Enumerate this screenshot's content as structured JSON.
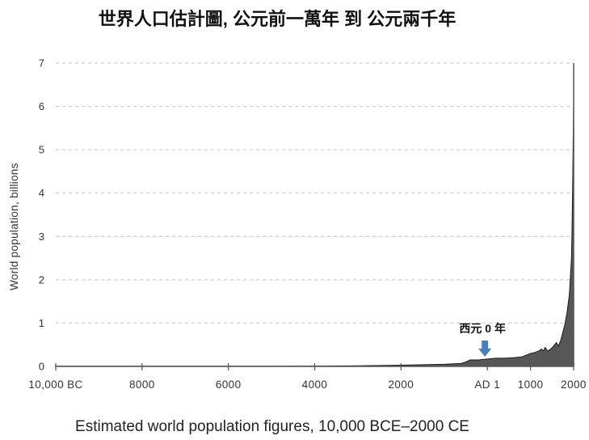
{
  "chart_data": {
    "type": "area",
    "title": "世界人口估計圖, 公元前一萬年 到 公元兩千年",
    "ylabel": "World population, billions",
    "caption": "Estimated world population figures, 10,000 BCE–2000 CE",
    "xlim": [
      -10000,
      2000
    ],
    "ylim": [
      0,
      7
    ],
    "yticks": [
      0,
      1,
      2,
      3,
      4,
      5,
      6,
      7
    ],
    "xticks": [
      {
        "value": -10000,
        "label": "10,000 BC"
      },
      {
        "value": -8000,
        "label": "8000"
      },
      {
        "value": -6000,
        "label": "6000"
      },
      {
        "value": -4000,
        "label": "4000"
      },
      {
        "value": -2000,
        "label": "2000"
      },
      {
        "value": 1,
        "label": "AD 1"
      },
      {
        "value": 1000,
        "label": "1000"
      },
      {
        "value": 2000,
        "label": "2000"
      }
    ],
    "grid": true,
    "annotation": {
      "text": "西元 0 年",
      "year": 0,
      "icon": "down-arrow-icon"
    },
    "series": [
      {
        "x": [
          -10000,
          -8000,
          -6500,
          -5000,
          -4000,
          -3000,
          -2000,
          -1000,
          -600,
          -500,
          -400,
          -200,
          0,
          200,
          400,
          600,
          800,
          1000,
          1100,
          1200,
          1250,
          1300,
          1340,
          1400,
          1500,
          1600,
          1650,
          1700,
          1750,
          1800,
          1850,
          1900,
          1950,
          1960,
          1970,
          1980,
          1990,
          2000
        ],
        "y": [
          0.004,
          0.005,
          0.005,
          0.005,
          0.007,
          0.014,
          0.027,
          0.05,
          0.07,
          0.1,
          0.15,
          0.15,
          0.17,
          0.19,
          0.19,
          0.2,
          0.22,
          0.3,
          0.32,
          0.36,
          0.4,
          0.36,
          0.44,
          0.35,
          0.43,
          0.55,
          0.47,
          0.6,
          0.79,
          0.98,
          1.26,
          1.65,
          2.5,
          3.0,
          3.7,
          4.4,
          5.3,
          6.1
        ]
      }
    ]
  },
  "colors": {
    "area_fill": "#575757",
    "area_stroke": "#1a1a1a",
    "grid": "#c2c2c2",
    "axis": "#555555",
    "arrow": "#4a7ebb"
  }
}
